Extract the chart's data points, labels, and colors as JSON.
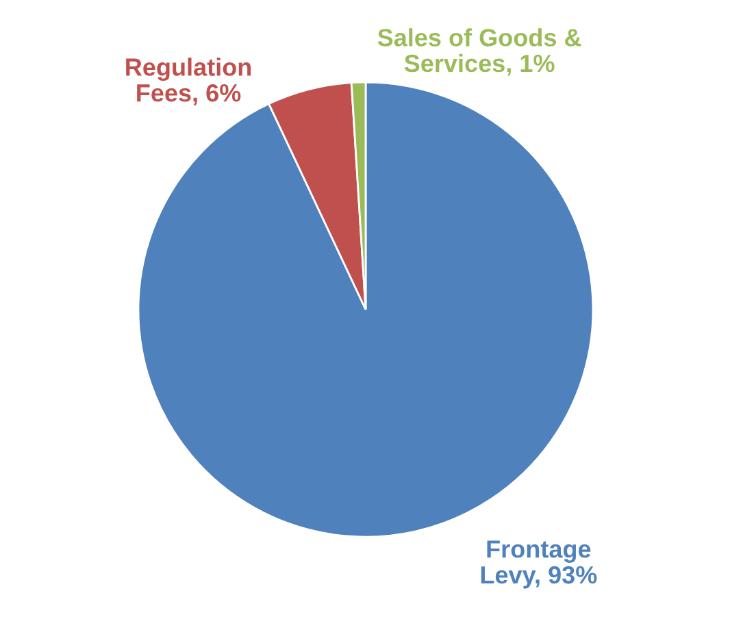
{
  "chart_data": {
    "type": "pie",
    "categories": [
      "Frontage Levy",
      "Regulation Fees",
      "Sales of Goods & Services"
    ],
    "values": [
      93,
      6,
      1
    ],
    "value_labels": [
      "93%",
      "6%",
      "1%"
    ],
    "colors": [
      "#4f81bd",
      "#c0504d",
      "#9bbb59"
    ],
    "legend": false
  }
}
